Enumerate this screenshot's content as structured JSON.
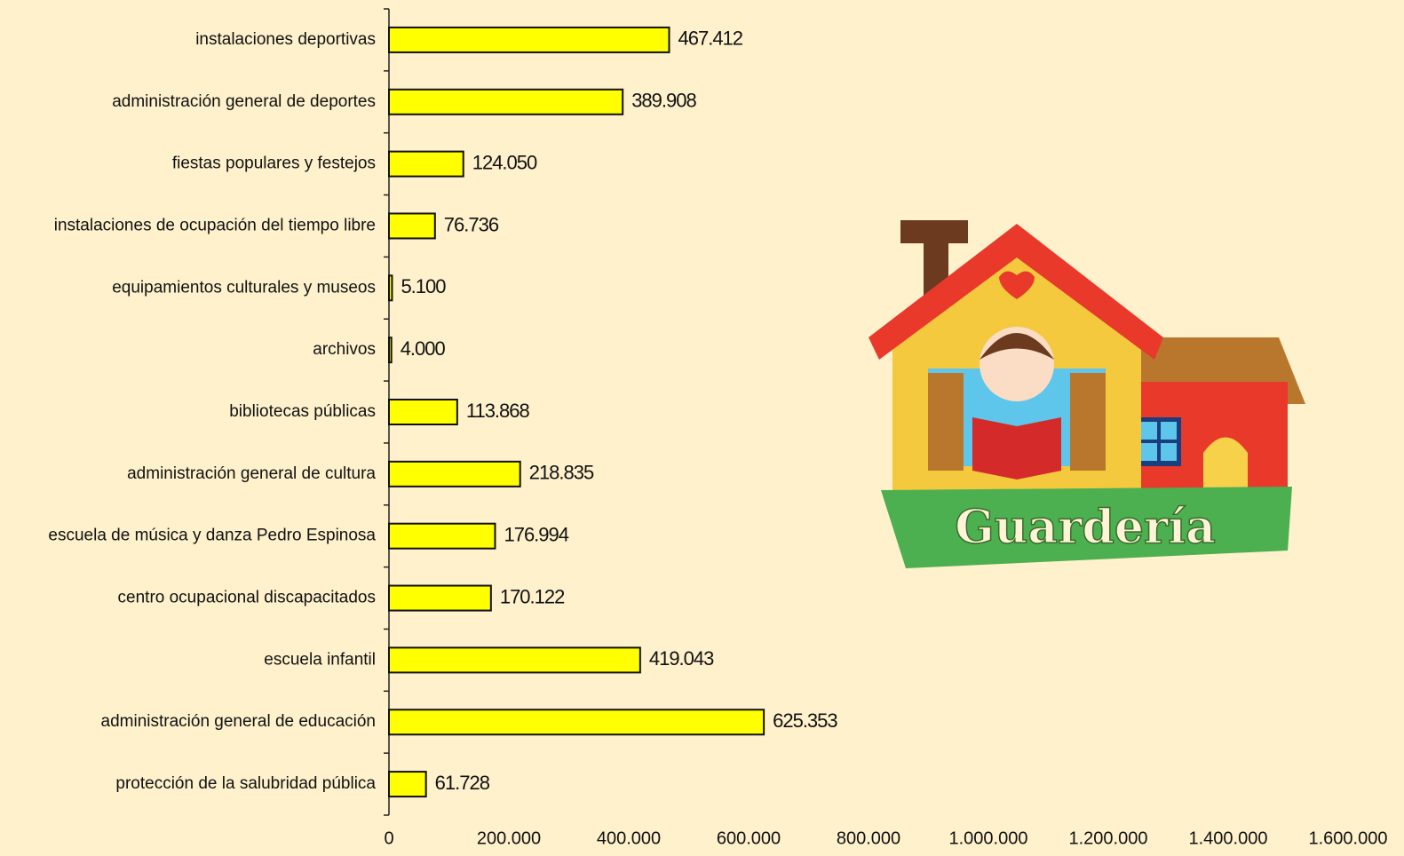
{
  "chart_data": {
    "type": "bar",
    "orientation": "horizontal",
    "categories": [
      "instalaciones deportivas",
      "administración general de deportes",
      "fiestas populares y festejos",
      "instalaciones de ocupación del tiempo libre",
      "equipamientos culturales y museos",
      "archivos",
      "bibliotecas públicas",
      "administración general de cultura",
      "escuela de música y danza Pedro Espinosa",
      "centro ocupacional discapacitados",
      "escuela infantil",
      "administración general de educación",
      "protección de la salubridad pública"
    ],
    "values": [
      467412,
      389908,
      124050,
      76736,
      5100,
      4000,
      113868,
      218835,
      176994,
      170122,
      419043,
      625353,
      61728
    ],
    "value_labels": [
      "467.412",
      "389.908",
      "124.050",
      "76.736",
      "5.100",
      "4.000",
      "113.868",
      "218.835",
      "176.994",
      "170.122",
      "419.043",
      "625.353",
      "61.728"
    ],
    "color": "#ffff00",
    "xlim": [
      0,
      1600000
    ],
    "xticks": [
      0,
      {
        "value": 200000,
        "label": "200.000"
      },
      {
        "value": 400000,
        "label": "400.000"
      },
      {
        "value": 600000,
        "label": "600.000"
      },
      {
        "value": 800000,
        "label": "800.000"
      },
      {
        "value": 1000000,
        "label": "1.000.000"
      },
      {
        "value": 1200000,
        "label": "1.200.000"
      },
      {
        "value": 1400000,
        "label": "1.400.000"
      },
      {
        "value": 1600000,
        "label": "1.600.000"
      }
    ],
    "grid": false,
    "annotation": "Guardería"
  }
}
